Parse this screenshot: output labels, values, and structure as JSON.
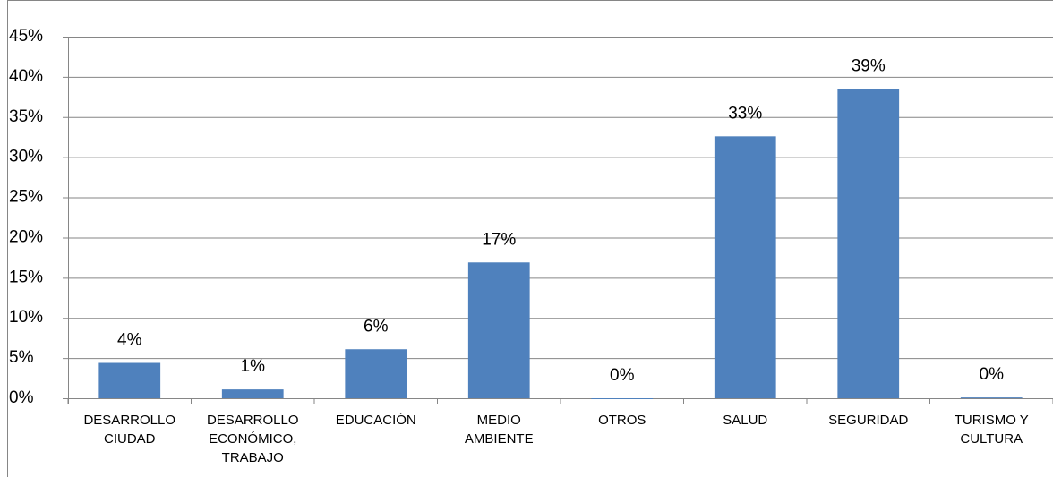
{
  "chart_data": {
    "type": "bar",
    "categories": [
      "DESARROLLO\nCIUDAD",
      "DESARROLLO\nECONÓMICO,\nTRABAJO",
      "EDUCACIÓN",
      "MEDIO\nAMBIENTE",
      "OTROS",
      "SALUD",
      "SEGURIDAD",
      "TURISMO Y\nCULTURA"
    ],
    "values": [
      4.4,
      1.1,
      6.1,
      16.9,
      0,
      32.6,
      38.5,
      0.1
    ],
    "value_labels": [
      "4%",
      "1%",
      "6%",
      "17%",
      "0%",
      "33%",
      "39%",
      "0%"
    ],
    "color": "#4f81bd",
    "ylim": [
      0,
      45
    ],
    "yticks": [
      {
        "value": 0,
        "label": "0%"
      },
      {
        "value": 5,
        "label": "5%"
      },
      {
        "value": 10,
        "label": "10%"
      },
      {
        "value": 15,
        "label": "15%"
      },
      {
        "value": 20,
        "label": "20%"
      },
      {
        "value": 25,
        "label": "25%"
      },
      {
        "value": 30,
        "label": "30%"
      },
      {
        "value": 35,
        "label": "35%"
      },
      {
        "value": 40,
        "label": "40%"
      },
      {
        "value": 45,
        "label": "45%"
      }
    ],
    "grid": true
  }
}
